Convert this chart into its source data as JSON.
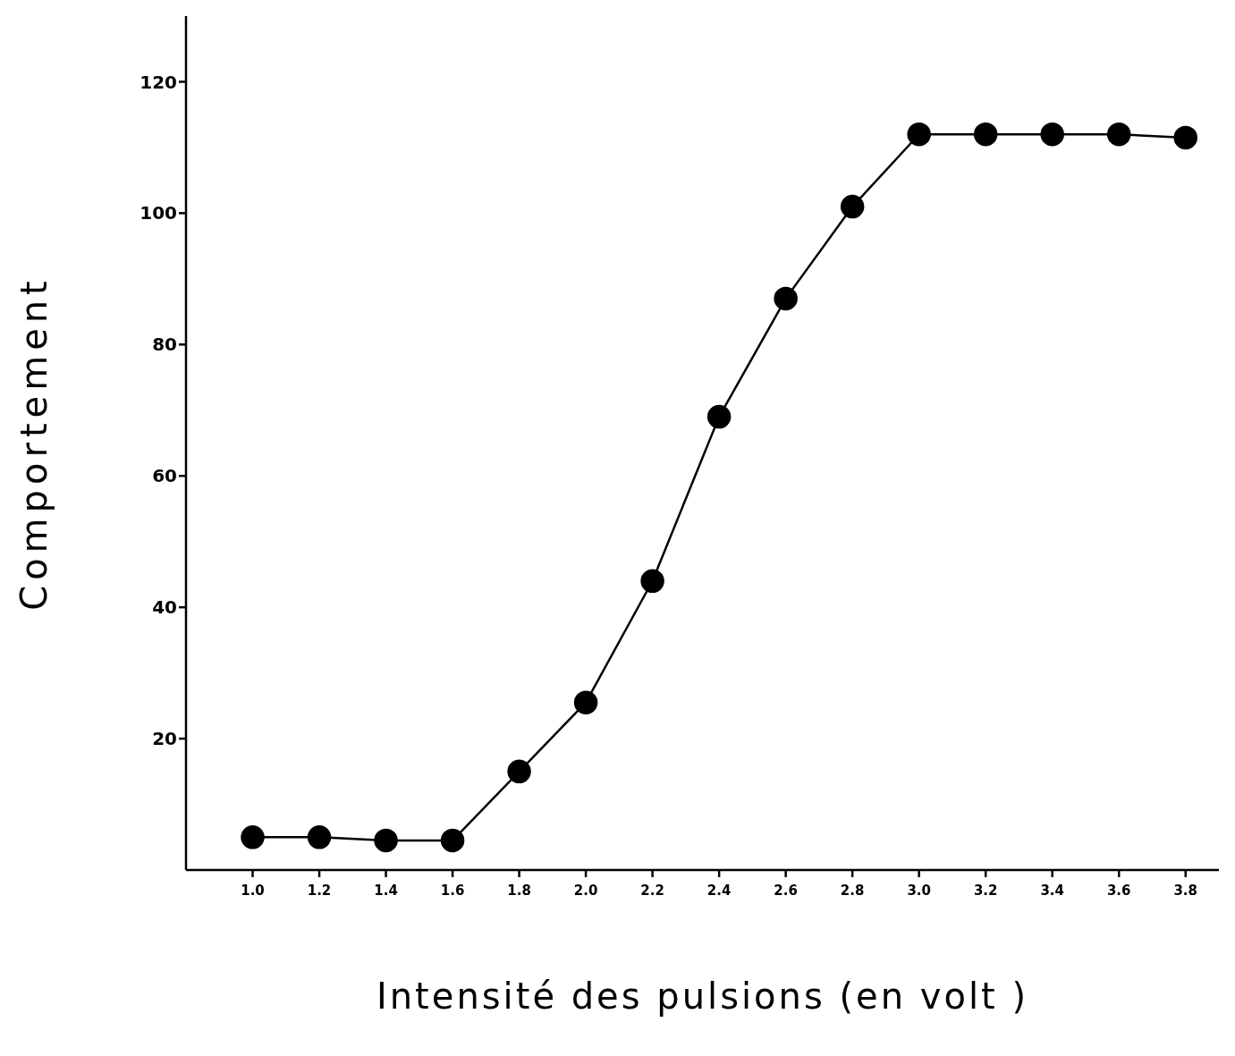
{
  "chart_data": {
    "type": "line",
    "xlabel": "Intensité des pulsions (en volt )",
    "ylabel": "Comportement",
    "x": [
      1.0,
      1.2,
      1.4,
      1.6,
      1.8,
      2.0,
      2.2,
      2.4,
      2.6,
      2.8,
      3.0,
      3.2,
      3.4,
      3.6,
      3.8
    ],
    "series": [
      {
        "color": "#000000",
        "values": [
          5,
          5,
          4.5,
          4.5,
          15,
          25.5,
          44,
          69,
          87,
          101,
          112,
          112,
          112,
          112,
          111.5
        ]
      }
    ],
    "xlim": [
      0.8,
      3.9
    ],
    "xticks": [
      {
        "value": 1.0,
        "label": "1.0"
      },
      {
        "value": 1.2,
        "label": "1.2"
      },
      {
        "value": 1.4,
        "label": "1.4"
      },
      {
        "value": 1.6,
        "label": "1.6"
      },
      {
        "value": 1.8,
        "label": "1.8"
      },
      {
        "value": 2.0,
        "label": "2.0"
      },
      {
        "value": 2.2,
        "label": "2.2"
      },
      {
        "value": 2.4,
        "label": "2.4"
      },
      {
        "value": 2.6,
        "label": "2.6"
      },
      {
        "value": 2.8,
        "label": "2.8"
      },
      {
        "value": 3.0,
        "label": "3.0"
      },
      {
        "value": 3.2,
        "label": "3.2"
      },
      {
        "value": 3.4,
        "label": "3.4"
      },
      {
        "value": 3.6,
        "label": "3.6"
      },
      {
        "value": 3.8,
        "label": "3.8"
      }
    ],
    "ylim": [
      0,
      130
    ],
    "yticks": [
      20,
      40,
      60,
      80,
      100,
      120
    ],
    "grid": false,
    "marker": "circle",
    "line_style": "solid"
  }
}
